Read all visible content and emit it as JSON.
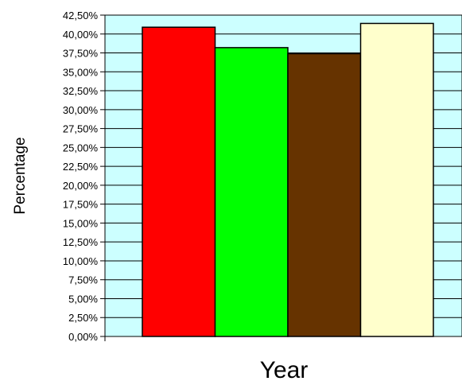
{
  "chart_data": {
    "type": "bar",
    "categories": [
      "",
      "",
      "",
      ""
    ],
    "values": [
      40.9,
      38.2,
      37.4,
      41.4
    ],
    "bar_colors": [
      "#ff0000",
      "#00ff00",
      "#663300",
      "#ffffcc"
    ],
    "title": "",
    "xlabel": "Year",
    "ylabel": "Percentage",
    "ylim": [
      0,
      42.5
    ],
    "y_tick_step": 2.5,
    "y_tick_labels": [
      "0,00%",
      "2,50%",
      "5,00%",
      "7,50%",
      "10,00%",
      "12,50%",
      "15,00%",
      "17,50%",
      "20,00%",
      "22,50%",
      "25,00%",
      "27,50%",
      "30,00%",
      "32,50%",
      "35,00%",
      "37,50%",
      "40,00%",
      "42,50%"
    ],
    "grid": true,
    "plot_background": "#ccffff",
    "legend": "none"
  }
}
